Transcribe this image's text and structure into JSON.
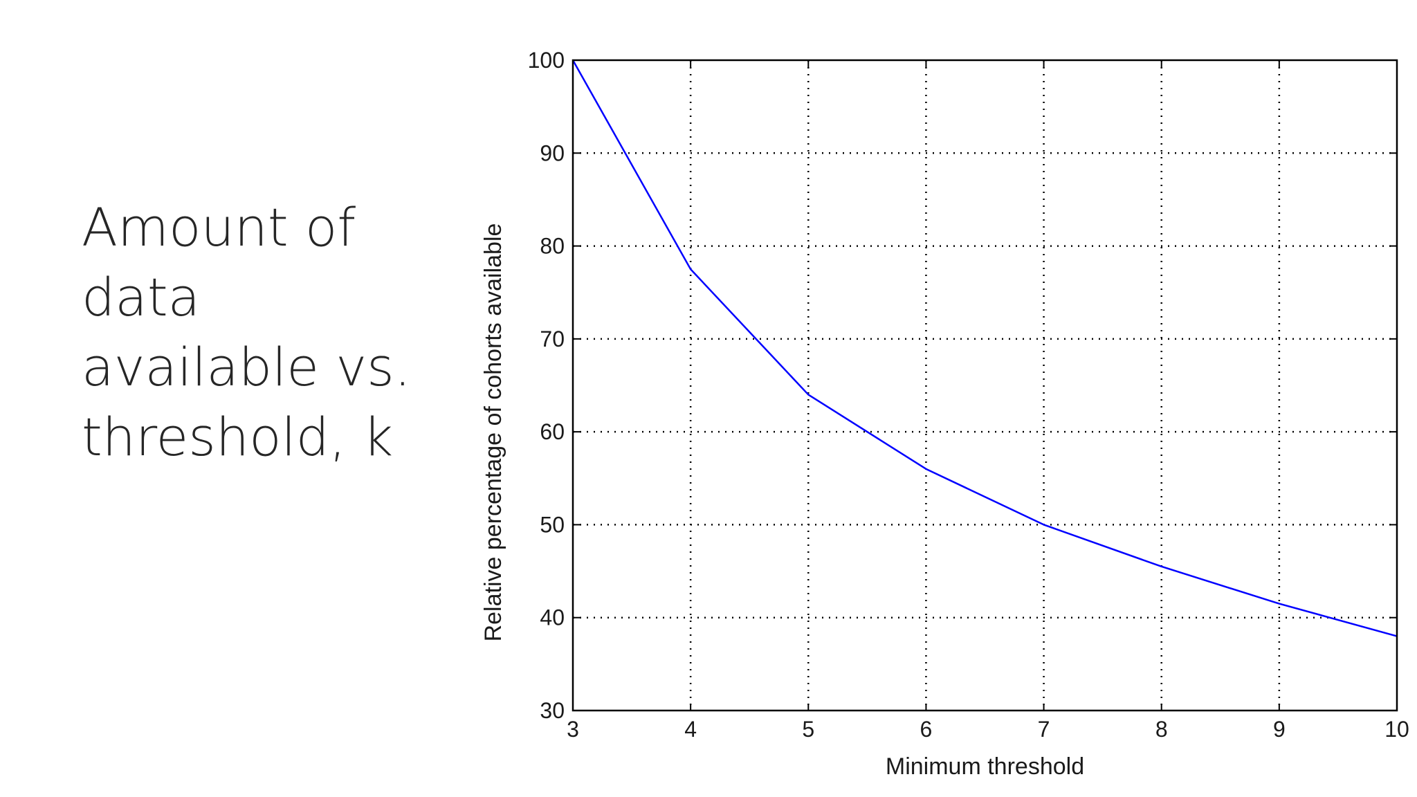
{
  "slide": {
    "title_lines": [
      "Amount of",
      "data",
      "available vs.",
      "threshold, k"
    ]
  },
  "chart_data": {
    "type": "line",
    "title": "",
    "xlabel": "Minimum threshold",
    "ylabel": "Relative percentage of cohorts available",
    "xlim": [
      3,
      10
    ],
    "ylim": [
      30,
      100
    ],
    "xticks": [
      3,
      4,
      5,
      6,
      7,
      8,
      9,
      10
    ],
    "yticks": [
      30,
      40,
      50,
      60,
      70,
      80,
      90,
      100
    ],
    "grid": true,
    "line_color": "#0000ff",
    "series": [
      {
        "x": [
          3,
          4,
          5,
          6,
          7,
          8,
          9,
          10
        ],
        "y": [
          100,
          77.5,
          64,
          56,
          50,
          45.5,
          41.5,
          38
        ]
      }
    ]
  }
}
